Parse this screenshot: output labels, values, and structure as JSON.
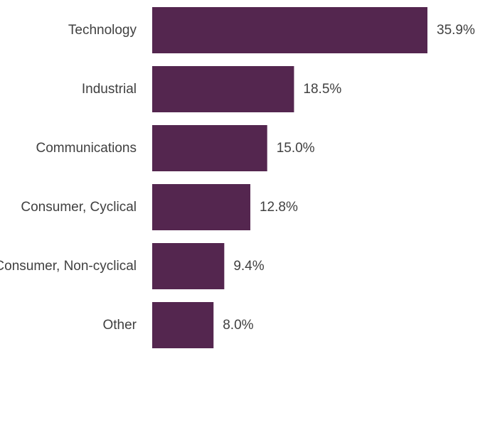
{
  "chart_data": {
    "type": "bar",
    "orientation": "horizontal",
    "categories": [
      "Technology",
      "Industrial",
      "Communications",
      "Consumer, Cyclical",
      "Consumer, Non-cyclical",
      "Other"
    ],
    "values": [
      35.9,
      18.5,
      15.0,
      12.8,
      9.4,
      8.0
    ],
    "data_labels": [
      "35.9%",
      "18.5%",
      "15.0%",
      "12.8%",
      "9.4%",
      "8.0%"
    ],
    "unit": "%",
    "title": "",
    "xlabel": "",
    "ylabel": "",
    "xlim": [
      0,
      35.9
    ],
    "grid": false,
    "legend": "none",
    "bar_color": "#54264f",
    "text_color": "#404040"
  }
}
